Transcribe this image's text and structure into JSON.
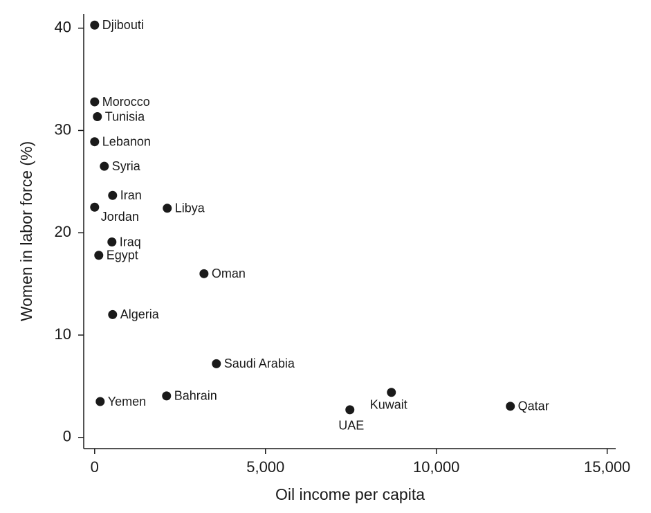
{
  "chart_data": {
    "type": "scatter",
    "x_label": "Oil income per capita",
    "y_label": "Women in labor force (%)",
    "labels": [
      "Djibouti",
      "Morocco",
      "Tunisia",
      "Lebanon",
      "Syria",
      "Iran",
      "Jordan",
      "Libya",
      "Iraq",
      "Egypt",
      "Oman",
      "Algeria",
      "Saudi Arabia",
      "Yemen",
      "Bahrain",
      "UAE",
      "Kuwait",
      "Qatar"
    ],
    "x": [
      0,
      0,
      80,
      0,
      283,
      526,
      0,
      2125,
      506,
      121,
      3200,
      526,
      3563,
      162,
      2105,
      7470,
      8685,
      12166
    ],
    "values": [
      40.3,
      32.8,
      31.35,
      28.9,
      26.5,
      23.65,
      22.5,
      22.4,
      19.1,
      17.8,
      16.0,
      12.0,
      7.2,
      3.5,
      4.05,
      2.7,
      4.4,
      3.04
    ],
    "color": "#1a1a1a",
    "xlim": [
      -320,
      15250
    ],
    "ylim": [
      -1.1,
      41.4
    ],
    "xticks": [
      0,
      {
        "value": 5000,
        "label": "5,000"
      },
      {
        "value": 10000,
        "label": "10,000"
      },
      {
        "value": 15000,
        "label": "15,000"
      }
    ],
    "yticks": [
      0,
      10,
      20,
      30,
      40
    ],
    "grid": false
  }
}
